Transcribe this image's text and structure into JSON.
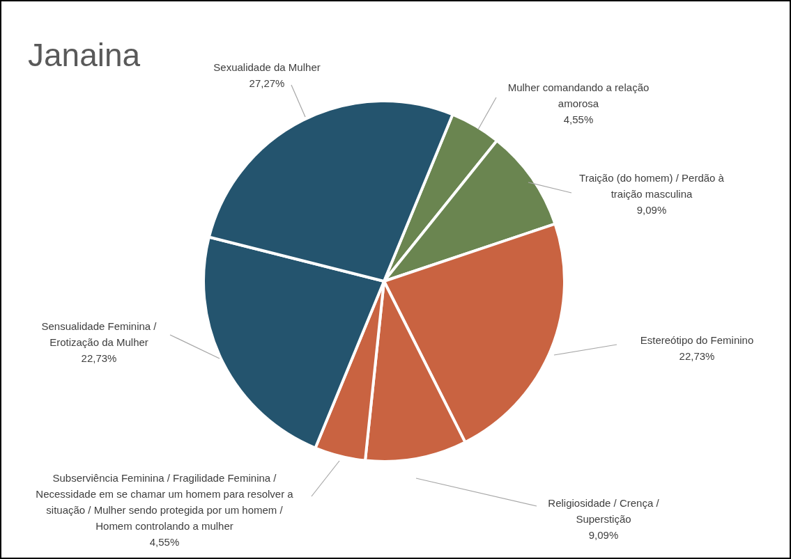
{
  "chart_data": {
    "type": "pie",
    "title": "Janaina",
    "categories": [
      "Mulher comandando a relação amorosa",
      "Traição (do homem) / Perdão à traição masculina",
      "Estereótipo do Feminino",
      "Religiosidade / Crença / Superstição",
      "Subserviência Feminina / Fragilidade Feminina / Necessidade em se chamar um homem para resolver a situação / Mulher sendo protegida por um homem / Homem controlando a mulher",
      "Sensualidade Feminina / Erotização da Mulher",
      "Sexualidade da Mulher"
    ],
    "values": [
      4.55,
      9.09,
      22.73,
      9.09,
      4.55,
      22.73,
      27.27
    ],
    "value_labels": [
      "4,55%",
      "9,09%",
      "22,73%",
      "9,09%",
      "4,55%",
      "22,73%",
      "27,27%"
    ],
    "colors": [
      "#6a8550",
      "#6a8550",
      "#c96341",
      "#c96341",
      "#c96341",
      "#24546e",
      "#24546e"
    ]
  }
}
